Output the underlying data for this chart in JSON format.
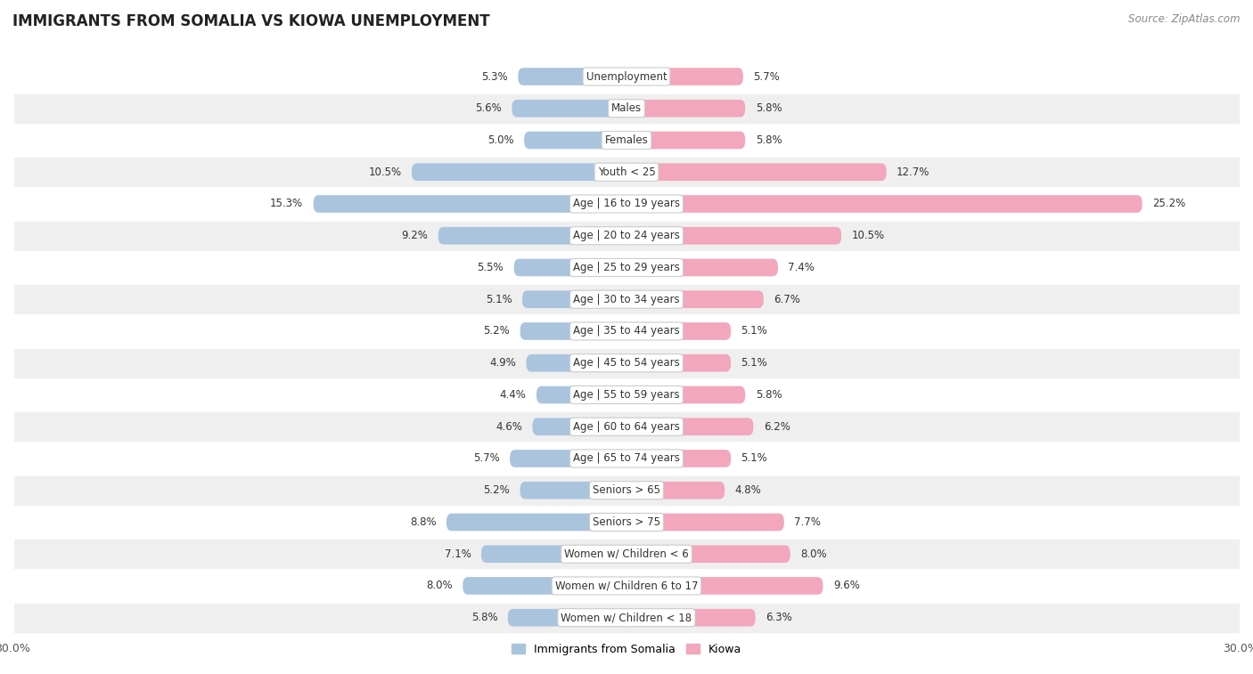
{
  "title": "IMMIGRANTS FROM SOMALIA VS KIOWA UNEMPLOYMENT",
  "source": "Source: ZipAtlas.com",
  "categories": [
    "Unemployment",
    "Males",
    "Females",
    "Youth < 25",
    "Age | 16 to 19 years",
    "Age | 20 to 24 years",
    "Age | 25 to 29 years",
    "Age | 30 to 34 years",
    "Age | 35 to 44 years",
    "Age | 45 to 54 years",
    "Age | 55 to 59 years",
    "Age | 60 to 64 years",
    "Age | 65 to 74 years",
    "Seniors > 65",
    "Seniors > 75",
    "Women w/ Children < 6",
    "Women w/ Children 6 to 17",
    "Women w/ Children < 18"
  ],
  "somalia_values": [
    5.3,
    5.6,
    5.0,
    10.5,
    15.3,
    9.2,
    5.5,
    5.1,
    5.2,
    4.9,
    4.4,
    4.6,
    5.7,
    5.2,
    8.8,
    7.1,
    8.0,
    5.8
  ],
  "kiowa_values": [
    5.7,
    5.8,
    5.8,
    12.7,
    25.2,
    10.5,
    7.4,
    6.7,
    5.1,
    5.1,
    5.8,
    6.2,
    5.1,
    4.8,
    7.7,
    8.0,
    9.6,
    6.3
  ],
  "somalia_color": "#aac4de",
  "kiowa_color": "#f2a7bc",
  "somalia_label": "Immigrants from Somalia",
  "kiowa_label": "Kiowa",
  "xlim": 30.0,
  "bar_height": 0.55,
  "row_bg_color": "#ffffff",
  "row_alt_color": "#efefef",
  "title_fontsize": 12,
  "source_fontsize": 8.5,
  "value_fontsize": 8.5,
  "label_fontsize": 8.5
}
